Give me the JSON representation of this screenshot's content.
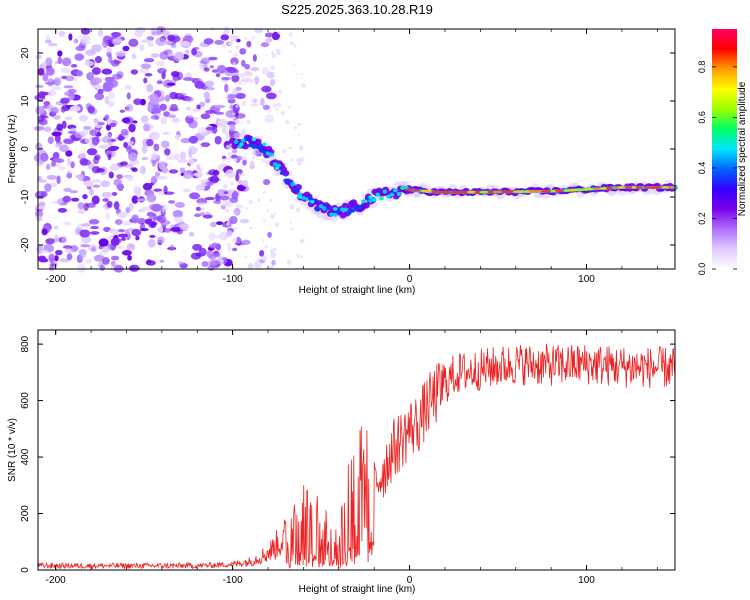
{
  "figure": {
    "title": "S225.2025.363.10.28.R19"
  },
  "chart_data": [
    {
      "type": "heatmap",
      "title": "S225.2025.363.10.28.R19",
      "xlabel": "Height of straight line (km)",
      "ylabel": "Frequency (Hz)",
      "xlim": [
        -210,
        150
      ],
      "ylim": [
        -25,
        25
      ],
      "xticks": [
        -200,
        -100,
        0,
        100
      ],
      "yticks": [
        -20,
        -10,
        0,
        10,
        20
      ],
      "colorbar": {
        "label": "Normalized spectral amplitude",
        "range": [
          0.0,
          0.95
        ],
        "ticks": [
          0.0,
          0.2,
          0.4,
          0.6,
          0.8
        ],
        "tick_labels": [
          "0.0",
          "0.2",
          "0.4",
          "0.6",
          "0.8"
        ],
        "colormap": "rainbow",
        "colors": [
          "#ffffff",
          "#e0c8ff",
          "#b070ff",
          "#7a00ea",
          "#3300ff",
          "#0066ff",
          "#00e5ff",
          "#00ff66",
          "#9cff00",
          "#ffff00",
          "#ff9900",
          "#ff0000",
          "#ff0066"
        ]
      },
      "description_points": {
        "noise_region_x": [
          -210,
          -95
        ],
        "signal_track": [
          {
            "x": -100,
            "y": 1
          },
          {
            "x": -90,
            "y": 1.5
          },
          {
            "x": -82,
            "y": 0
          },
          {
            "x": -75,
            "y": -3
          },
          {
            "x": -68,
            "y": -7
          },
          {
            "x": -60,
            "y": -10
          },
          {
            "x": -52,
            "y": -12
          },
          {
            "x": -45,
            "y": -13
          },
          {
            "x": -38,
            "y": -13
          },
          {
            "x": -30,
            "y": -12
          },
          {
            "x": -20,
            "y": -10
          },
          {
            "x": -10,
            "y": -9
          },
          {
            "x": 0,
            "y": -8.5
          },
          {
            "x": 15,
            "y": -9
          },
          {
            "x": 40,
            "y": -9
          },
          {
            "x": 80,
            "y": -8.8
          },
          {
            "x": 120,
            "y": -8
          },
          {
            "x": 150,
            "y": -8
          }
        ]
      }
    },
    {
      "type": "line",
      "xlabel": "Height of straight line (km)",
      "ylabel": "SNR (10 * v/v)",
      "xlim": [
        -210,
        150
      ],
      "ylim": [
        0,
        850
      ],
      "xticks": [
        -200,
        -100,
        0,
        100
      ],
      "yticks": [
        0,
        200,
        400,
        600,
        800
      ],
      "color": "#ee2222",
      "x": [
        -210,
        -180,
        -150,
        -120,
        -100,
        -90,
        -80,
        -70,
        -65,
        -60,
        -55,
        -50,
        -45,
        -40,
        -35,
        -30,
        -25,
        -20,
        -15,
        -10,
        -5,
        0,
        5,
        10,
        15,
        20,
        25,
        30,
        40,
        50,
        60,
        80,
        100,
        120,
        150
      ],
      "y": [
        15,
        15,
        15,
        15,
        20,
        30,
        60,
        120,
        180,
        200,
        160,
        170,
        150,
        120,
        250,
        380,
        320,
        300,
        350,
        420,
        460,
        500,
        520,
        580,
        620,
        660,
        690,
        700,
        710,
        720,
        730,
        725,
        730,
        720,
        715
      ]
    }
  ]
}
